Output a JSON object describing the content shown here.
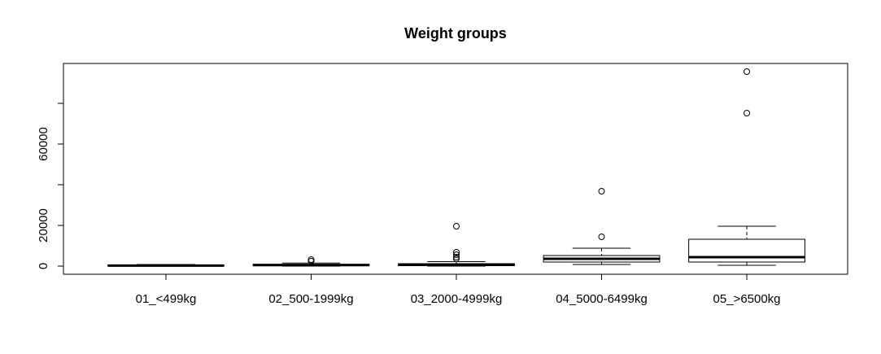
{
  "chart_data": {
    "type": "boxplot",
    "title": "Weight groups",
    "categories": [
      "01_<499kg",
      "02_500-1999kg",
      "03_2000-4999kg",
      "04_5000-6499kg",
      "05_>6500kg"
    ],
    "min": [
      0,
      0,
      0,
      800,
      400
    ],
    "q1": [
      100,
      300,
      200,
      2000,
      2000
    ],
    "median": [
      250,
      500,
      600,
      3600,
      4400
    ],
    "q3": [
      400,
      900,
      1200,
      5200,
      13200
    ],
    "max": [
      800,
      1500,
      2200,
      8800,
      19600
    ],
    "outliers": [
      [],
      [
        2400,
        3200
      ],
      [
        3600,
        4400,
        5600,
        6800,
        19600
      ],
      [
        14400,
        36800
      ],
      [
        75200,
        95600
      ]
    ],
    "color": "#000000",
    "ylim": [
      -4000,
      99600
    ],
    "yticks": [
      0,
      20000,
      40000,
      60000,
      80000
    ],
    "ytick_label_shown": [
      true,
      true,
      false,
      true,
      false
    ]
  }
}
